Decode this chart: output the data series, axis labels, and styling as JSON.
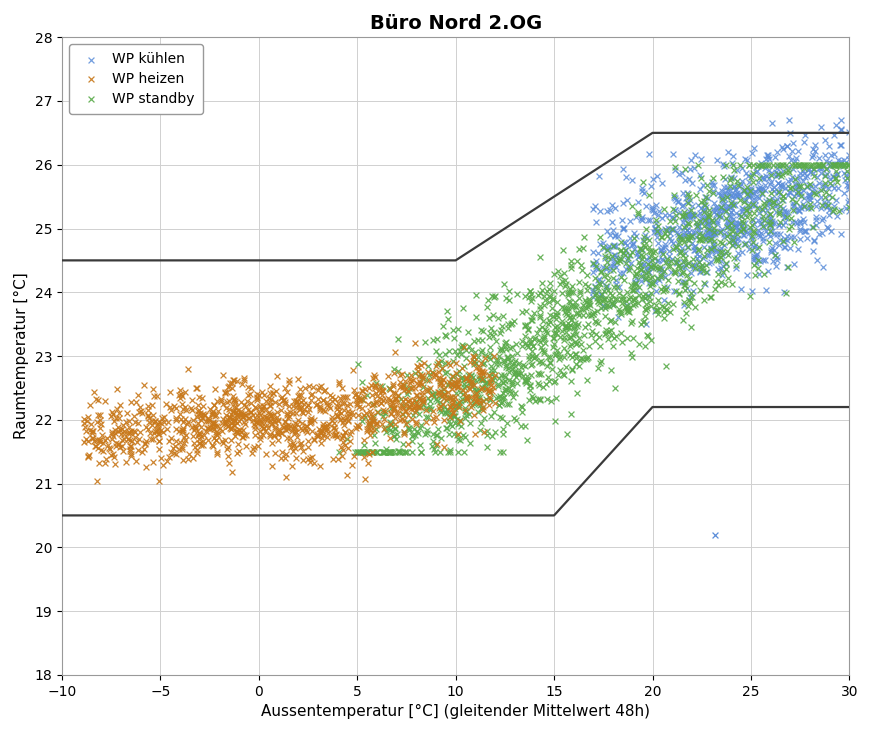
{
  "title": "Büro Nord 2.OG",
  "xlabel": "Aussentemperatur [°C] (gleitender Mittelwert 48h)",
  "ylabel": "Raumtemperatur [°C]",
  "xlim": [
    -10,
    30
  ],
  "ylim": [
    18,
    28
  ],
  "xticks": [
    -10,
    -5,
    0,
    5,
    10,
    15,
    20,
    25,
    30
  ],
  "yticks": [
    18,
    19,
    20,
    21,
    22,
    23,
    24,
    25,
    26,
    27,
    28
  ],
  "legend_labels": [
    "WP kühlen",
    "WP heizen",
    "WP standby"
  ],
  "legend_colors": [
    "#5B8DD9",
    "#C8781A",
    "#5AAB4A"
  ],
  "upper_line": [
    [
      -10,
      24.5
    ],
    [
      10,
      24.5
    ],
    [
      20,
      26.5
    ],
    [
      30,
      26.5
    ]
  ],
  "lower_line": [
    [
      -10,
      20.5
    ],
    [
      15,
      20.5
    ],
    [
      20,
      22.2
    ],
    [
      30,
      22.2
    ]
  ],
  "line_color": "#3A3A3A",
  "line_width": 1.6,
  "seed": 42,
  "grid_color": "#D0D0D0",
  "background_color": "#FFFFFF",
  "marker_size": 18,
  "marker_lw": 0.9,
  "title_fontsize": 14,
  "label_fontsize": 11
}
